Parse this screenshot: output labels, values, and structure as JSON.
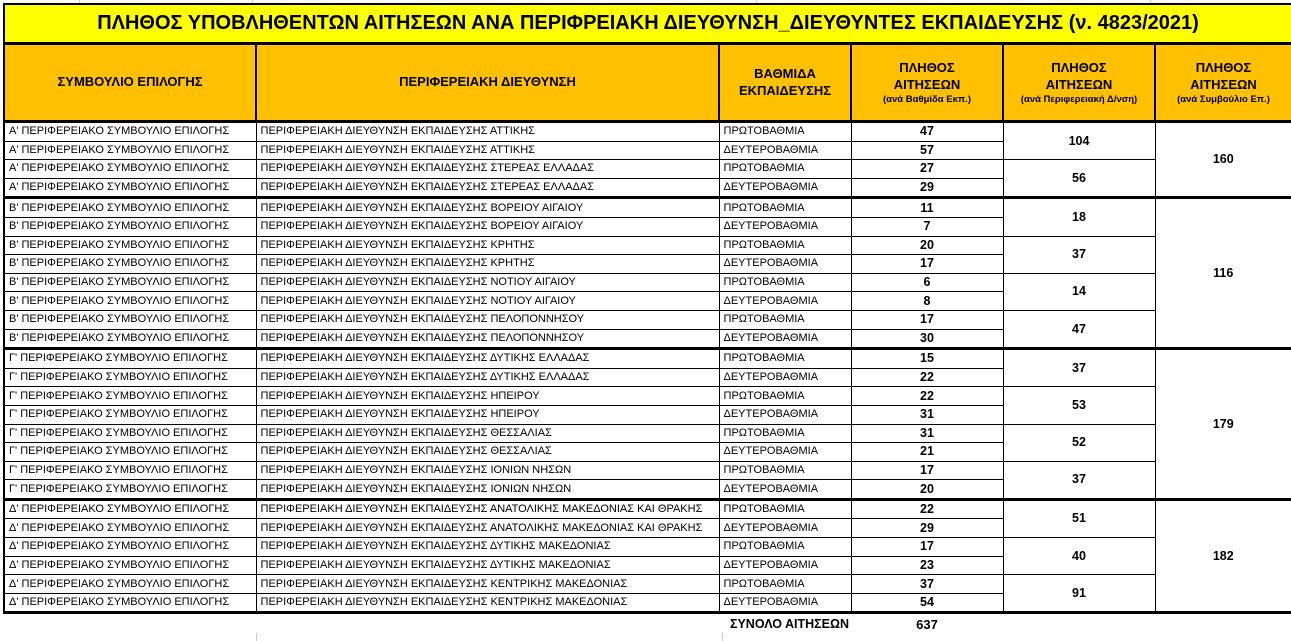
{
  "title": "ΠΛΗΘΟΣ ΥΠΟΒΛΗΘΕΝΤΩΝ ΑΙΤΗΣΕΩΝ ΑΝΑ ΠΕΡΙΦΡΕΙΑΚΗ ΔΙΕΥΘΥΝΣΗ_ΔΙΕΥΘΥΝΤΕΣ ΕΚΠΑΙΔΕΥΣΗΣ (ν. 4823/2021)",
  "columns": [
    {
      "label": "ΣΥΜΒΟΥΛΙΟ ΕΠΙΛΟΓΗΣ"
    },
    {
      "label": "ΠΕΡΙΦΕΡΕΙΑΚΗ ΔΙΕΥΘΥΝΣΗ"
    },
    {
      "label": "ΒΑΘΜΙΔΑ ΕΚΠΑΙΔΕΥΣΗΣ"
    },
    {
      "label": "ΠΛΗΘΟΣ ΑΙΤΗΣΕΩΝ",
      "sublabel": "(ανά Βαθμίδα Εκπ.)"
    },
    {
      "label": "ΠΛΗΘΟΣ ΑΙΤΗΣΕΩΝ",
      "sublabel": "(ανά Περιφερειακή Δ/νση)"
    },
    {
      "label": "ΠΛΗΘΟΣ ΑΙΤΗΣΕΩΝ",
      "sublabel": "(ανά Συμβούλιο Επ.)"
    }
  ],
  "groups": [
    {
      "council": "Α' ΠΕΡΙΦΕΡΕΙΑΚΟ ΣΥΜΒΟΥΛΙΟ ΕΠΙΛΟΓΗΣ",
      "council_total": 160,
      "directorates": [
        {
          "name": "ΠΕΡΙΦΕΡΕΙΑΚΗ ΔΙΕΥΘΥΝΣΗ ΕΚΠΑΙΔΕΥΣΗΣ ΑΤΤΙΚΗΣ",
          "total": 104,
          "levels": [
            {
              "level": "ΠΡΩΤΟΒΑΘΜΙΑ",
              "count": 47
            },
            {
              "level": "ΔΕΥΤΕΡΟΒΑΘΜΙΑ",
              "count": 57
            }
          ]
        },
        {
          "name": "ΠΕΡΙΦΕΡΕΙΑΚΗ ΔΙΕΥΘΥΝΣΗ ΕΚΠΑΙΔΕΥΣΗΣ ΣΤΕΡΕΑΣ ΕΛΛΑΔΑΣ",
          "total": 56,
          "levels": [
            {
              "level": "ΠΡΩΤΟΒΑΘΜΙΑ",
              "count": 27
            },
            {
              "level": "ΔΕΥΤΕΡΟΒΑΘΜΙΑ",
              "count": 29
            }
          ]
        }
      ]
    },
    {
      "council": "Β' ΠΕΡΙΦΕΡΕΙΑΚΟ ΣΥΜΒΟΥΛΙΟ ΕΠΙΛΟΓΗΣ",
      "council_total": 116,
      "directorates": [
        {
          "name": "ΠΕΡΙΦΕΡΕΙΑΚΗ ΔΙΕΥΘΥΝΣΗ ΕΚΠΑΙΔΕΥΣΗΣ ΒΟΡΕΙΟΥ ΑΙΓΑΙΟΥ",
          "total": 18,
          "levels": [
            {
              "level": "ΠΡΩΤΟΒΑΘΜΙΑ",
              "count": 11
            },
            {
              "level": "ΔΕΥΤΕΡΟΒΑΘΜΙΑ",
              "count": 7
            }
          ]
        },
        {
          "name": "ΠΕΡΙΦΕΡΕΙΑΚΗ ΔΙΕΥΘΥΝΣΗ ΕΚΠΑΙΔΕΥΣΗΣ ΚΡΗΤΗΣ",
          "total": 37,
          "levels": [
            {
              "level": "ΠΡΩΤΟΒΑΘΜΙΑ",
              "count": 20
            },
            {
              "level": "ΔΕΥΤΕΡΟΒΑΘΜΙΑ",
              "count": 17
            }
          ]
        },
        {
          "name": "ΠΕΡΙΦΕΡΕΙΑΚΗ ΔΙΕΥΘΥΝΣΗ ΕΚΠΑΙΔΕΥΣΗΣ ΝΟΤΙΟΥ ΑΙΓΑΙΟΥ",
          "total": 14,
          "levels": [
            {
              "level": "ΠΡΩΤΟΒΑΘΜΙΑ",
              "count": 6
            },
            {
              "level": "ΔΕΥΤΕΡΟΒΑΘΜΙΑ",
              "count": 8
            }
          ]
        },
        {
          "name": "ΠΕΡΙΦΕΡΕΙΑΚΗ ΔΙΕΥΘΥΝΣΗ ΕΚΠΑΙΔΕΥΣΗΣ ΠΕΛΟΠΟΝΝΗΣΟΥ",
          "total": 47,
          "levels": [
            {
              "level": "ΠΡΩΤΟΒΑΘΜΙΑ",
              "count": 17
            },
            {
              "level": "ΔΕΥΤΕΡΟΒΑΘΜΙΑ",
              "count": 30
            }
          ]
        }
      ]
    },
    {
      "council": "Γ' ΠΕΡΙΦΕΡΕΙΑΚΟ ΣΥΜΒΟΥΛΙΟ ΕΠΙΛΟΓΗΣ",
      "council_total": 179,
      "directorates": [
        {
          "name": "ΠΕΡΙΦΕΡΕΙΑΚΗ ΔΙΕΥΘΥΝΣΗ ΕΚΠΑΙΔΕΥΣΗΣ ΔΥΤΙΚΗΣ ΕΛΛΑΔΑΣ",
          "total": 37,
          "levels": [
            {
              "level": "ΠΡΩΤΟΒΑΘΜΙΑ",
              "count": 15
            },
            {
              "level": "ΔΕΥΤΕΡΟΒΑΘΜΙΑ",
              "count": 22
            }
          ]
        },
        {
          "name": "ΠΕΡΙΦΕΡΕΙΑΚΗ ΔΙΕΥΘΥΝΣΗ ΕΚΠΑΙΔΕΥΣΗΣ ΗΠΕΙΡΟΥ",
          "total": 53,
          "levels": [
            {
              "level": "ΠΡΩΤΟΒΑΘΜΙΑ",
              "count": 22
            },
            {
              "level": "ΔΕΥΤΕΡΟΒΑΘΜΙΑ",
              "count": 31
            }
          ]
        },
        {
          "name": "ΠΕΡΙΦΕΡΕΙΑΚΗ ΔΙΕΥΘΥΝΣΗ ΕΚΠΑΙΔΕΥΣΗΣ ΘΕΣΣΑΛΙΑΣ",
          "total": 52,
          "levels": [
            {
              "level": "ΠΡΩΤΟΒΑΘΜΙΑ",
              "count": 31
            },
            {
              "level": "ΔΕΥΤΕΡΟΒΑΘΜΙΑ",
              "count": 21
            }
          ]
        },
        {
          "name": "ΠΕΡΙΦΕΡΕΙΑΚΗ ΔΙΕΥΘΥΝΣΗ ΕΚΠΑΙΔΕΥΣΗΣ ΙΟΝΙΩΝ ΝΗΣΩΝ",
          "total": 37,
          "levels": [
            {
              "level": "ΠΡΩΤΟΒΑΘΜΙΑ",
              "count": 17
            },
            {
              "level": "ΔΕΥΤΕΡΟΒΑΘΜΙΑ",
              "count": 20
            }
          ]
        }
      ]
    },
    {
      "council": "Δ' ΠΕΡΙΦΕΡΕΙΑΚΟ ΣΥΜΒΟΥΛΙΟ ΕΠΙΛΟΓΗΣ",
      "council_total": 182,
      "directorates": [
        {
          "name": "ΠΕΡΙΦΕΡΕΙΑΚΗ ΔΙΕΥΘΥΝΣΗ ΕΚΠΑΙΔΕΥΣΗΣ ΑΝΑΤΟΛΙΚΗΣ ΜΑΚΕΔΟΝΙΑΣ ΚΑΙ ΘΡΑΚΗΣ",
          "total": 51,
          "levels": [
            {
              "level": "ΠΡΩΤΟΒΑΘΜΙΑ",
              "count": 22
            },
            {
              "level": "ΔΕΥΤΕΡΟΒΑΘΜΙΑ",
              "count": 29
            }
          ]
        },
        {
          "name": "ΠΕΡΙΦΕΡΕΙΑΚΗ ΔΙΕΥΘΥΝΣΗ ΕΚΠΑΙΔΕΥΣΗΣ ΔΥΤΙΚΗΣ ΜΑΚΕΔΟΝΙΑΣ",
          "total": 40,
          "levels": [
            {
              "level": "ΠΡΩΤΟΒΑΘΜΙΑ",
              "count": 17
            },
            {
              "level": "ΔΕΥΤΕΡΟΒΑΘΜΙΑ",
              "count": 23
            }
          ]
        },
        {
          "name": "ΠΕΡΙΦΕΡΕΙΑΚΗ ΔΙΕΥΘΥΝΣΗ ΕΚΠΑΙΔΕΥΣΗΣ ΚΕΝΤΡΙΚΗΣ ΜΑΚΕΔΟΝΙΑΣ",
          "total": 91,
          "levels": [
            {
              "level": "ΠΡΩΤΟΒΑΘΜΙΑ",
              "count": 37
            },
            {
              "level": "ΔΕΥΤΕΡΟΒΑΘΜΙΑ",
              "count": 54
            }
          ]
        }
      ]
    }
  ],
  "footer": {
    "label": "ΣΥΝΟΛΟ ΑΙΤΗΣΕΩΝ",
    "total": "637"
  },
  "colors": {
    "title_bg": "#FFFF00",
    "header_bg": "#FFC000",
    "total_bg": "#FFC000",
    "border": "#000000",
    "text": "#000000",
    "gridline": "#C9C9C9"
  }
}
